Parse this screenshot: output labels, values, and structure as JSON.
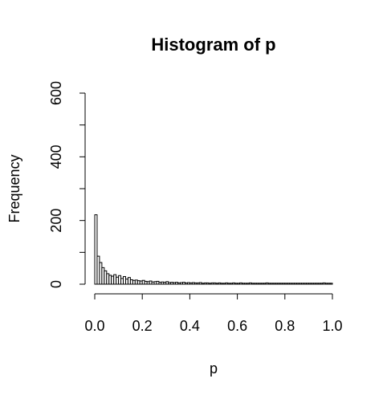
{
  "chart_data": {
    "type": "bar",
    "title": "Histogram of p",
    "xlabel": "p",
    "ylabel": "Frequency",
    "xlim": [
      0,
      1
    ],
    "ylim": [
      0,
      600
    ],
    "x_ticks": [
      "0.0",
      "0.2",
      "0.4",
      "0.6",
      "0.8",
      "1.0"
    ],
    "y_ticks": [
      "0",
      "200",
      "400",
      "600"
    ],
    "bin_width": 0.01,
    "bin_start": 0.0,
    "values": [
      218,
      88,
      68,
      52,
      42,
      33,
      28,
      25,
      30,
      22,
      27,
      18,
      24,
      16,
      21,
      14,
      12,
      13,
      11,
      10,
      12,
      9,
      8,
      10,
      7,
      8,
      9,
      6,
      7,
      6,
      8,
      5,
      6,
      5,
      6,
      4,
      5,
      6,
      4,
      5,
      4,
      5,
      4,
      4,
      5,
      3,
      4,
      4,
      3,
      4,
      4,
      3,
      4,
      3,
      3,
      4,
      3,
      3,
      4,
      3,
      3,
      4,
      3,
      3,
      3,
      4,
      3,
      3,
      3,
      3,
      3,
      3,
      4,
      3,
      3,
      3,
      3,
      3,
      3,
      3,
      3,
      3,
      3,
      3,
      3,
      3,
      3,
      3,
      3,
      3,
      3,
      3,
      3,
      3,
      3,
      3,
      4,
      3,
      3,
      3
    ],
    "grid": false,
    "legend": "none"
  }
}
